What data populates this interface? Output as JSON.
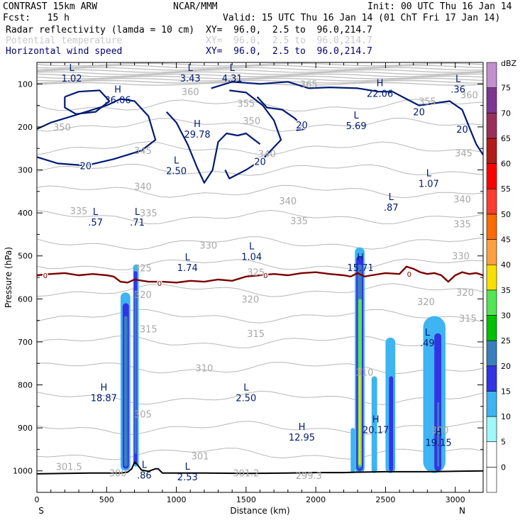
{
  "header": {
    "model": "CONTRAST 15km ARW",
    "org": "NCAR/MMM",
    "init": "Init: 00 UTC Thu 16 Jan 14",
    "fcst": "Fcst:   15 h",
    "valid": "Valid: 15 UTC Thu 16 Jan 14 (01 ChT Fri 17 Jan 14)",
    "fields": [
      {
        "name": "Radar reflectivity (lamda = 10 cm)",
        "xy": "XY=  96.0,  2.5 to  96.0,214.7",
        "color": "#000000"
      },
      {
        "name": "Potential temperature",
        "xy": "XY=  96.0,  2.5 to  96.0,214.7",
        "color": "#c8c8c8"
      },
      {
        "name": "Horizontal wind speed",
        "xy": "XY=  96.0,  2.5 to  96.0,214.7",
        "color": "#000070"
      }
    ]
  },
  "chart_data": {
    "type": "cross-section",
    "xlabel": "Distance (km)",
    "ylabel": "Pressure (hPa)",
    "xlim": [
      0,
      3200
    ],
    "ylim": [
      1050,
      50
    ],
    "x_ticks": [
      0,
      500,
      1000,
      1500,
      2000,
      2500,
      3000
    ],
    "y_ticks": [
      100,
      200,
      300,
      400,
      500,
      600,
      700,
      800,
      900,
      1000
    ],
    "x_end_labels": {
      "left": "S",
      "right": "N"
    },
    "colorbar": {
      "units": "dBZ",
      "levels": [
        0,
        5,
        10,
        15,
        20,
        25,
        30,
        35,
        40,
        45,
        50,
        55,
        60,
        65,
        70,
        75
      ],
      "colors": [
        "#ffffff",
        "#ffffff",
        "#9ff8f8",
        "#3eb4f2",
        "#3333e6",
        "#3a7fbd",
        "#00c000",
        "#53e553",
        "#f7e000",
        "#ffa040",
        "#ff6b00",
        "#ff3c2e",
        "#ff0000",
        "#b31b1b",
        "#9c2f5a",
        "#7d3592",
        "#c390cf"
      ]
    },
    "theta_labels": [
      {
        "v": "365",
        "x": 1950,
        "p": 100
      },
      {
        "v": "360",
        "x": 1100,
        "p": 118
      },
      {
        "v": "360",
        "x": 3100,
        "p": 125
      },
      {
        "v": "355",
        "x": 1500,
        "p": 145
      },
      {
        "v": "355",
        "x": 2800,
        "p": 140
      },
      {
        "v": "350",
        "x": 180,
        "p": 200
      },
      {
        "v": "350",
        "x": 1540,
        "p": 185
      },
      {
        "v": "345",
        "x": 760,
        "p": 255
      },
      {
        "v": "345",
        "x": 3060,
        "p": 260
      },
      {
        "v": "340",
        "x": 1650,
        "p": 262
      },
      {
        "v": "340",
        "x": 760,
        "p": 338
      },
      {
        "v": "340",
        "x": 1800,
        "p": 372
      },
      {
        "v": "340",
        "x": 3050,
        "p": 368
      },
      {
        "v": "335",
        "x": 300,
        "p": 395
      },
      {
        "v": "335",
        "x": 800,
        "p": 400
      },
      {
        "v": "335",
        "x": 1880,
        "p": 418
      },
      {
        "v": "335",
        "x": 3050,
        "p": 425
      },
      {
        "v": "330",
        "x": 1230,
        "p": 475
      },
      {
        "v": "330",
        "x": 3040,
        "p": 500
      },
      {
        "v": "325",
        "x": 760,
        "p": 528
      },
      {
        "v": "325",
        "x": 1570,
        "p": 538
      },
      {
        "v": "320",
        "x": 760,
        "p": 590
      },
      {
        "v": "320",
        "x": 1530,
        "p": 600
      },
      {
        "v": "320",
        "x": 2790,
        "p": 606
      },
      {
        "v": "320",
        "x": 3070,
        "p": 585
      },
      {
        "v": "315",
        "x": 800,
        "p": 670
      },
      {
        "v": "315",
        "x": 1570,
        "p": 680
      },
      {
        "v": "315",
        "x": 3090,
        "p": 645
      },
      {
        "v": "310",
        "x": 1200,
        "p": 760
      },
      {
        "v": "310",
        "x": 2350,
        "p": 770
      },
      {
        "v": "305",
        "x": 760,
        "p": 868
      },
      {
        "v": "301",
        "x": 1170,
        "p": 965
      },
      {
        "v": "301.5",
        "x": 230,
        "p": 990
      },
      {
        "v": "300",
        "x": 580,
        "p": 1005
      },
      {
        "v": "301.2",
        "x": 1500,
        "p": 1005
      },
      {
        "v": "299.3",
        "x": 1950,
        "p": 1010
      },
      {
        "v": "300",
        "x": 2890,
        "p": 905
      }
    ],
    "hl_labels": [
      {
        "t": "L",
        "v": "1.02",
        "x": 250,
        "p": 75
      },
      {
        "t": "L",
        "v": "3.43",
        "x": 1100,
        "p": 75
      },
      {
        "t": "L",
        "v": "4.31",
        "x": 1400,
        "p": 75
      },
      {
        "t": "H",
        "v": "36.06",
        "x": 580,
        "p": 125
      },
      {
        "t": "H",
        "v": "22.06",
        "x": 2460,
        "p": 110
      },
      {
        "t": "L",
        "v": ".36",
        "x": 3020,
        "p": 100
      },
      {
        "t": "H",
        "v": "29.78",
        "x": 1150,
        "p": 205
      },
      {
        "t": "L",
        "v": "5.69",
        "x": 2290,
        "p": 185
      },
      {
        "t": "L",
        "v": "2.50",
        "x": 1000,
        "p": 290
      },
      {
        "t": "L",
        "v": "1.07",
        "x": 2810,
        "p": 320
      },
      {
        "t": "L",
        "v": ".87",
        "x": 2540,
        "p": 375
      },
      {
        "t": "L",
        "v": ".57",
        "x": 420,
        "p": 410
      },
      {
        "t": "L",
        "v": ".71",
        "x": 720,
        "p": 410
      },
      {
        "t": "L",
        "v": "1.04",
        "x": 1540,
        "p": 490
      },
      {
        "t": "L",
        "v": "1.74",
        "x": 1080,
        "p": 515
      },
      {
        "t": "H",
        "v": "15.71",
        "x": 2320,
        "p": 515
      },
      {
        "t": "L",
        "v": ".49",
        "x": 2800,
        "p": 690
      },
      {
        "t": "H",
        "v": "18.87",
        "x": 480,
        "p": 818
      },
      {
        "t": "L",
        "v": "2.50",
        "x": 1500,
        "p": 818
      },
      {
        "t": "H",
        "v": "20.17",
        "x": 2430,
        "p": 892
      },
      {
        "t": "H",
        "v": "12.95",
        "x": 1900,
        "p": 910
      },
      {
        "t": "H",
        "v": "19.15",
        "x": 2880,
        "p": 922
      },
      {
        "t": "L",
        "v": ".86",
        "x": 770,
        "p": 998
      },
      {
        "t": "L",
        "v": "2.53",
        "x": 1080,
        "p": 1002
      }
    ],
    "wind_20_labels": [
      {
        "v": "20",
        "x": 350,
        "p": 290
      },
      {
        "v": "20",
        "x": 1600,
        "p": 280
      },
      {
        "v": "20",
        "x": 1900,
        "p": 195
      },
      {
        "v": "20",
        "x": 2740,
        "p": 165
      },
      {
        "v": "20",
        "x": 3050,
        "p": 205
      }
    ],
    "freezing_level": {
      "label": "0",
      "label_points": [
        {
          "x": 60,
          "p": 545
        },
        {
          "x": 880,
          "p": 563
        },
        {
          "x": 1640,
          "p": 545
        },
        {
          "x": 2670,
          "p": 542
        }
      ],
      "x": [
        0,
        100,
        200,
        300,
        400,
        500,
        550,
        600,
        650,
        700,
        800,
        900,
        1000,
        1100,
        1200,
        1300,
        1400,
        1500,
        1600,
        1700,
        1800,
        1900,
        2000,
        2100,
        2200,
        2250,
        2300,
        2350,
        2400,
        2500,
        2600,
        2650,
        2700,
        2750,
        2800,
        2850,
        2900,
        2950,
        3000,
        3050,
        3100,
        3150,
        3200
      ],
      "p": [
        545,
        542,
        540,
        545,
        542,
        545,
        548,
        560,
        562,
        555,
        560,
        560,
        562,
        558,
        560,
        555,
        558,
        548,
        545,
        542,
        545,
        540,
        538,
        542,
        545,
        548,
        540,
        548,
        545,
        540,
        542,
        525,
        530,
        538,
        542,
        540,
        545,
        560,
        545,
        538,
        542,
        540,
        545
      ]
    },
    "terrain": {
      "x": [
        0,
        200,
        400,
        600,
        650,
        680,
        700,
        720,
        750,
        800,
        850,
        870,
        900,
        1000,
        1200,
        1500,
        1800,
        2000,
        2200,
        2300,
        2500,
        2800,
        3000,
        3200
      ],
      "p": [
        1007,
        1006,
        1005,
        1005,
        1003,
        995,
        980,
        985,
        998,
        1001,
        995,
        995,
        1005,
        1005,
        1005,
        1006,
        1005,
        1004,
        1004,
        1003,
        1002,
        1002,
        1001,
        1000
      ]
    },
    "reflectivity_cells": [
      {
        "x1": 600,
        "x2": 670,
        "top": 585,
        "bot": 1000,
        "dbz": 10
      },
      {
        "x1": 615,
        "x2": 660,
        "top": 610,
        "bot": 995,
        "dbz": 15
      },
      {
        "x1": 625,
        "x2": 650,
        "top": 640,
        "bot": 990,
        "dbz": 20
      },
      {
        "x1": 690,
        "x2": 730,
        "top": 520,
        "bot": 990,
        "dbz": 10
      },
      {
        "x1": 695,
        "x2": 720,
        "top": 535,
        "bot": 985,
        "dbz": 15
      },
      {
        "x1": 700,
        "x2": 715,
        "top": 580,
        "bot": 960,
        "dbz": 20
      },
      {
        "x1": 2280,
        "x2": 2350,
        "top": 480,
        "bot": 1005,
        "dbz": 10
      },
      {
        "x1": 2290,
        "x2": 2340,
        "top": 500,
        "bot": 1000,
        "dbz": 15
      },
      {
        "x1": 2300,
        "x2": 2330,
        "top": 520,
        "bot": 995,
        "dbz": 20
      },
      {
        "x1": 2305,
        "x2": 2330,
        "top": 600,
        "bot": 990,
        "dbz": 30
      },
      {
        "x1": 2308,
        "x2": 2322,
        "top": 760,
        "bot": 985,
        "dbz": 35
      },
      {
        "x1": 2250,
        "x2": 2280,
        "top": 900,
        "bot": 1005,
        "dbz": 10
      },
      {
        "x1": 2500,
        "x2": 2570,
        "top": 690,
        "bot": 1005,
        "dbz": 10
      },
      {
        "x1": 2525,
        "x2": 2555,
        "top": 780,
        "bot": 1000,
        "dbz": 15
      },
      {
        "x1": 2400,
        "x2": 2440,
        "top": 780,
        "bot": 1005,
        "dbz": 10
      },
      {
        "x1": 2770,
        "x2": 2930,
        "top": 640,
        "bot": 1005,
        "dbz": 10
      },
      {
        "x1": 2850,
        "x2": 2900,
        "top": 680,
        "bot": 1000,
        "dbz": 15
      },
      {
        "x1": 2870,
        "x2": 2885,
        "top": 840,
        "bot": 990,
        "dbz": 20
      }
    ]
  }
}
